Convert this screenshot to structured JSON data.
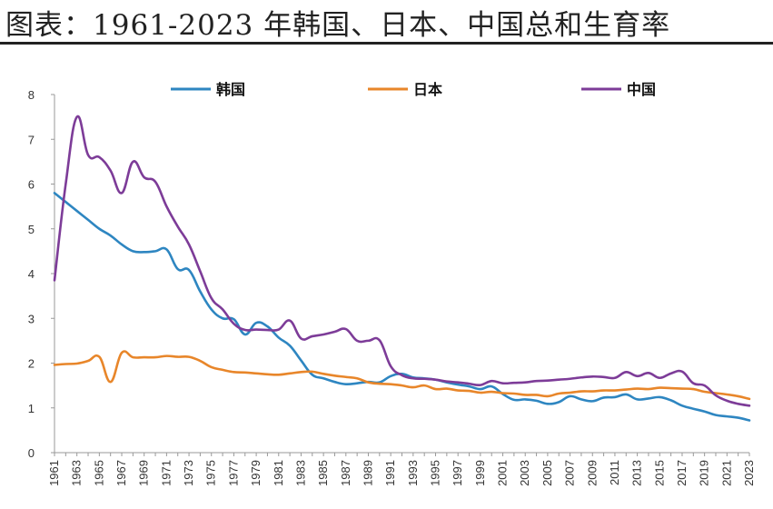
{
  "title": "图表：1961-2023 年韩国、日本、中国总和生育率",
  "chart_data": {
    "type": "line",
    "x": [
      1961,
      1962,
      1963,
      1964,
      1965,
      1966,
      1967,
      1968,
      1969,
      1970,
      1971,
      1972,
      1973,
      1974,
      1975,
      1976,
      1977,
      1978,
      1979,
      1980,
      1981,
      1982,
      1983,
      1984,
      1985,
      1986,
      1987,
      1988,
      1989,
      1990,
      1991,
      1992,
      1993,
      1994,
      1995,
      1996,
      1997,
      1998,
      1999,
      2000,
      2001,
      2002,
      2003,
      2004,
      2005,
      2006,
      2007,
      2008,
      2009,
      2010,
      2011,
      2012,
      2013,
      2014,
      2015,
      2016,
      2017,
      2018,
      2019,
      2020,
      2021,
      2022,
      2023
    ],
    "x_tick_labels": [
      "1961",
      "1963",
      "1965",
      "1967",
      "1969",
      "1971",
      "1973",
      "1975",
      "1977",
      "1979",
      "1981",
      "1983",
      "1985",
      "1987",
      "1989",
      "1991",
      "1993",
      "1995",
      "1997",
      "1999",
      "2001",
      "2003",
      "2005",
      "2007",
      "2009",
      "2011",
      "2013",
      "2015",
      "2017",
      "2019",
      "2021",
      "2023"
    ],
    "ylim": [
      0,
      8
    ],
    "y_ticks": [
      "0",
      "1",
      "2",
      "3",
      "4",
      "5",
      "6",
      "7",
      "8"
    ],
    "legend_position": "top",
    "grid": false,
    "series": [
      {
        "name": "韩国",
        "color": "#2e86c1",
        "values": [
          5.8,
          5.6,
          5.4,
          5.2,
          5.0,
          4.85,
          4.65,
          4.5,
          4.48,
          4.5,
          4.54,
          4.1,
          4.08,
          3.6,
          3.2,
          3.0,
          2.98,
          2.64,
          2.9,
          2.82,
          2.57,
          2.39,
          2.06,
          1.74,
          1.66,
          1.58,
          1.53,
          1.55,
          1.58,
          1.57,
          1.71,
          1.76,
          1.68,
          1.66,
          1.63,
          1.57,
          1.52,
          1.48,
          1.42,
          1.48,
          1.31,
          1.18,
          1.19,
          1.16,
          1.09,
          1.13,
          1.26,
          1.19,
          1.15,
          1.23,
          1.24,
          1.3,
          1.19,
          1.21,
          1.24,
          1.17,
          1.05,
          0.98,
          0.92,
          0.84,
          0.81,
          0.78,
          0.72
        ]
      },
      {
        "name": "日本",
        "color": "#e8862a",
        "values": [
          1.96,
          1.98,
          1.99,
          2.05,
          2.14,
          1.58,
          2.23,
          2.13,
          2.13,
          2.13,
          2.16,
          2.14,
          2.14,
          2.05,
          1.91,
          1.85,
          1.8,
          1.79,
          1.77,
          1.75,
          1.74,
          1.77,
          1.8,
          1.81,
          1.76,
          1.72,
          1.69,
          1.66,
          1.57,
          1.54,
          1.53,
          1.5,
          1.46,
          1.5,
          1.42,
          1.43,
          1.39,
          1.38,
          1.34,
          1.36,
          1.33,
          1.32,
          1.29,
          1.29,
          1.26,
          1.32,
          1.34,
          1.37,
          1.37,
          1.39,
          1.39,
          1.41,
          1.43,
          1.42,
          1.45,
          1.44,
          1.43,
          1.42,
          1.36,
          1.33,
          1.3,
          1.26,
          1.2
        ]
      },
      {
        "name": "中国",
        "color": "#7d3c98",
        "values": [
          3.85,
          6.0,
          7.5,
          6.65,
          6.6,
          6.3,
          5.8,
          6.5,
          6.15,
          6.05,
          5.5,
          5.05,
          4.65,
          4.05,
          3.45,
          3.2,
          2.88,
          2.74,
          2.75,
          2.74,
          2.75,
          2.95,
          2.55,
          2.6,
          2.64,
          2.7,
          2.76,
          2.5,
          2.5,
          2.51,
          1.93,
          1.73,
          1.66,
          1.65,
          1.63,
          1.59,
          1.57,
          1.54,
          1.51,
          1.6,
          1.55,
          1.56,
          1.57,
          1.6,
          1.61,
          1.63,
          1.65,
          1.68,
          1.7,
          1.69,
          1.67,
          1.8,
          1.71,
          1.78,
          1.67,
          1.77,
          1.81,
          1.55,
          1.5,
          1.28,
          1.16,
          1.09,
          1.05
        ]
      }
    ]
  }
}
